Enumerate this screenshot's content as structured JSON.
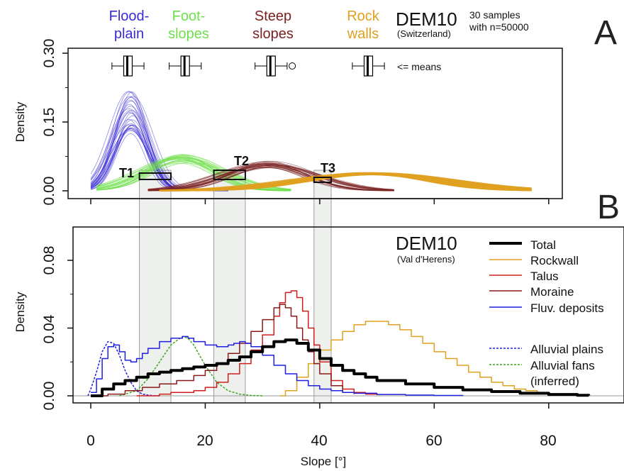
{
  "panel_a": {
    "letter": "A",
    "dem": "DEM10",
    "region": "(Switzerland)",
    "samples_line1": "30 samples",
    "samples_line2": "with n=50000",
    "ylabel": "Density",
    "yticks": [
      "0.00",
      "0.15",
      "0.30"
    ],
    "means_label": "<= means",
    "classes": [
      {
        "line1": "Flood-",
        "line2": "plain",
        "color": "#3a2bd6"
      },
      {
        "line1": "Foot-",
        "line2": "slopes",
        "color": "#6fe04a"
      },
      {
        "line1": "Steep",
        "line2": "slopes",
        "color": "#7a2222"
      },
      {
        "line1": "Rock",
        "line2": "walls",
        "color": "#e0a020"
      }
    ],
    "thresholds": [
      {
        "label": "T1",
        "from": 8.5,
        "to": 14
      },
      {
        "label": "T2",
        "from": 21.5,
        "to": 27
      },
      {
        "label": "T3",
        "from": 39,
        "to": 42
      }
    ]
  },
  "panel_b": {
    "letter": "B",
    "dem": "DEM10",
    "region": "(Val d'Herens)",
    "ylabel": "Density",
    "yticks": [
      "0.00",
      "0.04",
      "0.08"
    ],
    "xticks": [
      "0",
      "20",
      "40",
      "60",
      "80"
    ],
    "xlabel": "Slope [°]",
    "legend": [
      {
        "label": "Total",
        "color": "#000000",
        "dashed": false,
        "width": 4
      },
      {
        "label": "Rockwall",
        "color": "#e0a020",
        "dashed": false,
        "width": 1.5
      },
      {
        "label": "Talus",
        "color": "#d01e1e",
        "dashed": false,
        "width": 1.5
      },
      {
        "label": "Moraine",
        "color": "#8b1a1a",
        "dashed": false,
        "width": 1.5
      },
      {
        "label": "Fluv. deposits",
        "color": "#1f1fe0",
        "dashed": false,
        "width": 1.5
      },
      {
        "label": "Alluvial plains",
        "color": "#1f1fe0",
        "dashed": true,
        "width": 1.5
      },
      {
        "label": "Alluvial fans",
        "color": "#3aa81e",
        "dashed": true,
        "width": 1.5
      },
      {
        "label": "(inferred)",
        "color": "",
        "dashed": false,
        "width": 0
      }
    ]
  },
  "chart_data": [
    {
      "type": "line",
      "title": "",
      "xlabel": "Slope [°]",
      "ylabel": "Density",
      "xlim": [
        -3,
        83
      ],
      "ylim": [
        -0.01,
        0.32
      ],
      "grid": false,
      "series": [
        {
          "name": "Flood-plain",
          "color": "#3a2bd6",
          "mean": 7,
          "sd": 3,
          "peak_range": [
            0.12,
            0.22
          ],
          "x_range": [
            0,
            24
          ],
          "means_boxplot": [
            5,
            8
          ]
        },
        {
          "name": "Foot-slopes",
          "color": "#6fe04a",
          "mean": 16,
          "sd": 6.5,
          "peak_range": [
            0.06,
            0.08
          ],
          "x_range": [
            1,
            35
          ],
          "means_boxplot": [
            15,
            18
          ]
        },
        {
          "name": "Steep slopes",
          "color": "#7a2222",
          "mean": 31,
          "sd": 7.5,
          "peak_range": [
            0.05,
            0.065
          ],
          "x_range": [
            10,
            53
          ],
          "means_boxplot": [
            30,
            33
          ]
        },
        {
          "name": "Rock walls",
          "color": "#e0a020",
          "mean": 49,
          "sd": 12,
          "peak_range": [
            0.035,
            0.04
          ],
          "x_range": [
            12,
            77
          ],
          "means_boxplot": [
            47,
            50
          ]
        }
      ]
    },
    {
      "type": "line",
      "title": "",
      "xlabel": "Slope [°]",
      "ylabel": "Density",
      "xlim": [
        -3,
        92
      ],
      "ylim": [
        -0.002,
        0.098
      ],
      "grid": false,
      "series": [
        {
          "name": "Total",
          "color": "#000000",
          "x": [
            0,
            2,
            4,
            6,
            8,
            10,
            12,
            14,
            16,
            18,
            20,
            22,
            24,
            26,
            28,
            30,
            32,
            34,
            36,
            38,
            40,
            42,
            44,
            46,
            48,
            50,
            55,
            60,
            65,
            70,
            75,
            80,
            85,
            87
          ],
          "y": [
            0.0,
            0.004,
            0.007,
            0.009,
            0.011,
            0.013,
            0.014,
            0.015,
            0.016,
            0.017,
            0.018,
            0.019,
            0.021,
            0.023,
            0.026,
            0.029,
            0.032,
            0.033,
            0.031,
            0.027,
            0.022,
            0.018,
            0.015,
            0.013,
            0.011,
            0.009,
            0.007,
            0.005,
            0.0035,
            0.0025,
            0.0015,
            0.0008,
            0.0003,
            0.0002
          ]
        },
        {
          "name": "Rockwall",
          "color": "#e0a020",
          "x": [
            33,
            34,
            36,
            38,
            40,
            42,
            44,
            46,
            48,
            50,
            52,
            54,
            56,
            58,
            60,
            62,
            64,
            66,
            68,
            70,
            72,
            74,
            76,
            78,
            80,
            82,
            85,
            87
          ],
          "y": [
            0.0,
            0.003,
            0.011,
            0.019,
            0.027,
            0.033,
            0.038,
            0.042,
            0.044,
            0.044,
            0.042,
            0.039,
            0.035,
            0.031,
            0.026,
            0.022,
            0.018,
            0.014,
            0.011,
            0.008,
            0.006,
            0.004,
            0.003,
            0.002,
            0.001,
            0.0006,
            0.0002,
            0.0001
          ]
        },
        {
          "name": "Talus",
          "color": "#d01e1e",
          "x": [
            8,
            10,
            12,
            14,
            16,
            18,
            20,
            22,
            24,
            26,
            28,
            30,
            32,
            33,
            34,
            35,
            36,
            37,
            38,
            39,
            40,
            42,
            44,
            46,
            48,
            50
          ],
          "y": [
            0.0,
            0.0,
            0.001,
            0.002,
            0.002,
            0.003,
            0.005,
            0.008,
            0.013,
            0.019,
            0.027,
            0.036,
            0.047,
            0.055,
            0.061,
            0.062,
            0.058,
            0.05,
            0.04,
            0.03,
            0.02,
            0.009,
            0.004,
            0.002,
            0.001,
            0.0005
          ]
        },
        {
          "name": "Moraine",
          "color": "#8b1a1a",
          "x": [
            0,
            3,
            6,
            9,
            12,
            15,
            18,
            20,
            22,
            24,
            26,
            28,
            30,
            32,
            33,
            34,
            35,
            36,
            37,
            38,
            39,
            40,
            42,
            44,
            46
          ],
          "y": [
            0.0,
            0.001,
            0.003,
            0.005,
            0.007,
            0.009,
            0.012,
            0.015,
            0.019,
            0.025,
            0.031,
            0.038,
            0.045,
            0.052,
            0.054,
            0.052,
            0.047,
            0.04,
            0.033,
            0.026,
            0.019,
            0.013,
            0.006,
            0.002,
            0.001
          ]
        },
        {
          "name": "Fluv. deposits",
          "color": "#1f1fe0",
          "x": [
            0,
            1,
            2,
            3,
            4,
            5,
            6,
            7,
            8,
            9,
            10,
            12,
            14,
            16,
            17,
            18,
            20,
            22,
            24,
            25,
            26,
            27,
            28,
            30,
            32,
            34,
            36,
            38,
            40,
            42,
            44,
            46,
            50,
            55,
            60,
            65
          ],
          "y": [
            0.002,
            0.01,
            0.022,
            0.029,
            0.03,
            0.026,
            0.021,
            0.02,
            0.022,
            0.025,
            0.028,
            0.032,
            0.034,
            0.035,
            0.034,
            0.032,
            0.03,
            0.029,
            0.03,
            0.031,
            0.032,
            0.031,
            0.029,
            0.024,
            0.018,
            0.013,
            0.009,
            0.006,
            0.004,
            0.003,
            0.002,
            0.0015,
            0.0008,
            0.0004,
            0.0002,
            0.0001
          ]
        },
        {
          "name": "Alluvial plains",
          "color": "#1f1fe0",
          "x": [
            -0.5,
            0,
            1,
            2,
            3,
            4,
            5,
            6,
            7,
            8,
            9,
            10,
            11,
            12
          ],
          "y": [
            0.0,
            0.004,
            0.014,
            0.026,
            0.032,
            0.031,
            0.024,
            0.015,
            0.008,
            0.003,
            0.001,
            0.0004,
            0.0001,
            0.0
          ]
        },
        {
          "name": "Alluvial fans",
          "color": "#3aa81e",
          "x": [
            5,
            8,
            10,
            12,
            14,
            16,
            17,
            18,
            20,
            22,
            24,
            26,
            28,
            30
          ],
          "y": [
            0.0,
            0.003,
            0.01,
            0.02,
            0.03,
            0.035,
            0.034,
            0.03,
            0.018,
            0.008,
            0.003,
            0.001,
            0.0002,
            0.0
          ]
        }
      ]
    }
  ]
}
